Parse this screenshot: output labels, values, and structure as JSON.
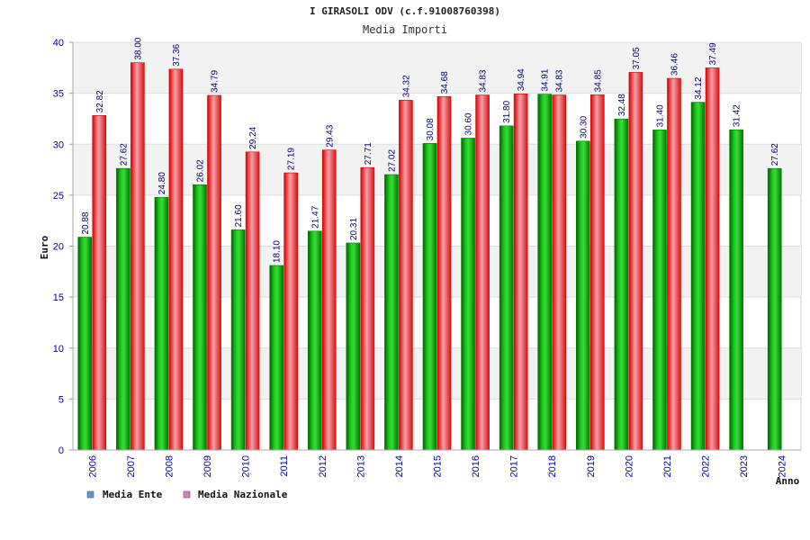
{
  "chart_data": {
    "type": "bar",
    "title": "I GIRASOLI ODV (c.f.91008760398)",
    "subtitle": "Media Importi",
    "ylabel": "Euro",
    "xlabel": "Anno",
    "ylim": [
      0,
      40
    ],
    "yticks": [
      0,
      5,
      10,
      15,
      20,
      25,
      30,
      35,
      40
    ],
    "grid": true,
    "legend_position": "bottom-left",
    "categories": [
      "2006",
      "2007",
      "2008",
      "2009",
      "2010",
      "2011",
      "2012",
      "2013",
      "2014",
      "2015",
      "2016",
      "2017",
      "2018",
      "2019",
      "2020",
      "2021",
      "2022",
      "2023",
      "2024"
    ],
    "series": [
      {
        "name": "Media Ente",
        "color": "#00aa00",
        "legend_color": "#5b9bd5",
        "values": [
          20.88,
          27.62,
          24.8,
          26.02,
          21.6,
          18.1,
          21.47,
          20.31,
          27.02,
          30.08,
          30.6,
          31.8,
          34.91,
          30.3,
          32.48,
          31.4,
          34.12,
          31.42,
          27.62
        ],
        "labels": [
          "20.88",
          "27.62",
          "24.80",
          "26.02",
          "21.60",
          "18.10",
          "21.47",
          "20.31",
          "27.02",
          "30.08",
          "30.60",
          "31.80",
          "34.91",
          "30.30",
          "32.48",
          "31.40",
          "34.12",
          "31.42",
          "27.62"
        ]
      },
      {
        "name": "Media Nazionale",
        "color": "#ee2222",
        "legend_color": "#e377c2",
        "values": [
          32.82,
          38.0,
          37.36,
          34.79,
          29.24,
          27.19,
          29.43,
          27.71,
          34.32,
          34.68,
          34.83,
          34.94,
          34.83,
          34.85,
          37.05,
          36.46,
          37.49,
          null,
          null
        ],
        "labels": [
          "32.82",
          "38.00",
          "37.36",
          "34.79",
          "29.24",
          "27.19",
          "29.43",
          "27.71",
          "34.32",
          "34.68",
          "34.83",
          "34.94",
          "34.83",
          "34.85",
          "37.05",
          "36.46",
          "37.49",
          "",
          ""
        ]
      }
    ]
  }
}
